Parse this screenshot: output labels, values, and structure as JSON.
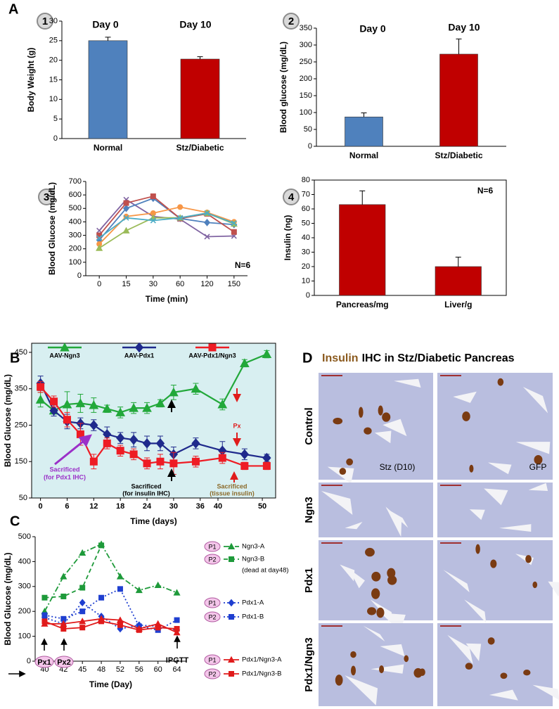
{
  "chart_data": [
    {
      "type": "bar",
      "figure_label": "A",
      "panel": "1",
      "annotations": [
        "Day 0",
        "Day 10"
      ],
      "ylabel": "Body Weight (g)",
      "categories": [
        "Normal",
        "Stz/Diabetic"
      ],
      "values": [
        25,
        20.3
      ],
      "errors": [
        0.9,
        0.6
      ],
      "colors": [
        "#4f81bd",
        "#c00000"
      ],
      "ylim": [
        0,
        30
      ],
      "yticks": [
        0,
        5,
        10,
        15,
        20,
        25,
        30
      ]
    },
    {
      "type": "bar",
      "panel": "2",
      "annotations": [
        "Day 0",
        "Day 10"
      ],
      "ylabel": "Blood glucose (mg/dL)",
      "categories": [
        "Normal",
        "Stz/Diabetic"
      ],
      "values": [
        87,
        273
      ],
      "errors": [
        12,
        45
      ],
      "colors": [
        "#4f81bd",
        "#c00000"
      ],
      "ylim": [
        0,
        350
      ],
      "yticks": [
        0,
        50,
        100,
        150,
        200,
        250,
        300,
        350
      ]
    },
    {
      "type": "line",
      "panel": "3",
      "annotations": [
        "N=6"
      ],
      "xlabel": "Time (min)",
      "ylabel": "Blood Glucose (mg/dL)",
      "categories": [
        "0",
        "15",
        "30",
        "60",
        "120",
        "150"
      ],
      "series": [
        {
          "color": "#8064a2",
          "marker": "x",
          "values": [
            335,
            565,
            440,
            420,
            290,
            295
          ]
        },
        {
          "color": "#4f81bd",
          "marker": "diamond",
          "values": [
            265,
            500,
            575,
            425,
            395,
            380
          ]
        },
        {
          "color": "#c0504d",
          "marker": "square",
          "values": [
            300,
            540,
            590,
            425,
            460,
            325
          ]
        },
        {
          "color": "#f79646",
          "marker": "circle",
          "values": [
            235,
            440,
            465,
            510,
            470,
            400
          ]
        },
        {
          "color": "#9bbb59",
          "marker": "triangle",
          "values": [
            205,
            335,
            430,
            430,
            465,
            385
          ]
        },
        {
          "color": "#4bacc6",
          "marker": "x",
          "values": [
            280,
            430,
            410,
            430,
            465,
            390
          ]
        }
      ],
      "ylim": [
        0,
        700
      ],
      "yticks": [
        0,
        100,
        200,
        300,
        400,
        500,
        600,
        700
      ]
    },
    {
      "type": "bar",
      "panel": "4",
      "annotations": [
        "N=6"
      ],
      "frame": true,
      "ylabel": "Insulin (ng)",
      "categories": [
        "Pancreas/mg",
        "Liver/g"
      ],
      "values": [
        63,
        20
      ],
      "errors": [
        9.5,
        6.5
      ],
      "colors": [
        "#c00000",
        "#c00000"
      ],
      "ylim": [
        0,
        80
      ],
      "yticks": [
        0,
        10,
        20,
        30,
        40,
        50,
        60,
        70,
        80
      ]
    },
    {
      "type": "line",
      "figure_label": "B",
      "xlabel": "Time (days)",
      "ylabel": "Blood Glucose (mg/dL)",
      "background": "#d8eff1",
      "annotations": [
        "Sacrificed",
        "(for Pdx1 IHC)",
        "Sacrificed",
        "(for insulin IHC)",
        "Sacrificed",
        "(tissue insulin)",
        "Px"
      ],
      "series": [
        {
          "name": "AAV-Ngn3",
          "color": "#22a83a",
          "marker": "triangle",
          "x": [
            0,
            3,
            6,
            9,
            12,
            15,
            18,
            21,
            24,
            27,
            30,
            35,
            41,
            46,
            51
          ],
          "values": [
            320,
            290,
            307,
            310,
            305,
            295,
            285,
            297,
            297,
            310,
            340,
            350,
            307,
            420,
            445
          ],
          "errors": [
            20,
            15,
            35,
            25,
            20,
            10,
            15,
            15,
            15,
            10,
            20,
            15,
            15,
            10,
            10
          ]
        },
        {
          "name": "AAV-Pdx1",
          "color": "#1f2a8c",
          "marker": "diamond",
          "x": [
            0,
            3,
            6,
            9,
            12,
            15,
            18,
            21,
            24,
            27,
            30,
            35,
            41,
            46,
            51
          ],
          "values": [
            365,
            290,
            260,
            255,
            250,
            225,
            215,
            210,
            200,
            200,
            170,
            200,
            180,
            170,
            160
          ],
          "errors": [
            20,
            15,
            20,
            15,
            15,
            20,
            15,
            20,
            20,
            20,
            20,
            15,
            25,
            15,
            10
          ]
        },
        {
          "name": "AAV-Pdx1/Ngn3",
          "color": "#ee1c24",
          "marker": "square",
          "x": [
            0,
            3,
            6,
            9,
            12,
            15,
            18,
            21,
            24,
            27,
            30,
            35,
            41,
            46,
            51
          ],
          "values": [
            355,
            315,
            265,
            225,
            150,
            200,
            180,
            170,
            145,
            150,
            145,
            150,
            160,
            138,
            138
          ],
          "errors": [
            15,
            15,
            20,
            30,
            20,
            15,
            15,
            15,
            15,
            20,
            30,
            15,
            15,
            10,
            10
          ]
        }
      ],
      "xlim": [
        -2,
        53
      ],
      "xticks": [
        0,
        6,
        12,
        18,
        24,
        30,
        36,
        40,
        50
      ],
      "ylim": [
        50,
        475
      ],
      "yticks": [
        50,
        150,
        250,
        350,
        450
      ]
    },
    {
      "type": "line",
      "figure_label": "C",
      "xlabel": "Time (Day)",
      "ylabel": "Blood Glucose (mg/dL)",
      "annotations": [
        "Px1",
        "Px2",
        "IPGTT"
      ],
      "categories": [
        "40",
        "42",
        "45",
        "48",
        "52",
        "56",
        "60",
        "64"
      ],
      "series": [
        {
          "name": "Ngn3-A",
          "badge": "P1",
          "color": "#1e9a3a",
          "marker": "triangle",
          "dash": "8 3 2 3",
          "values": [
            200,
            340,
            435,
            470,
            340,
            285,
            305,
            275
          ]
        },
        {
          "name": "Ngn3-B",
          "badge": "P2",
          "note": "(dead at day48)",
          "color": "#1e9a3a",
          "marker": "square",
          "dash": "6 4",
          "values": [
            255,
            260,
            295,
            465,
            null,
            null,
            null,
            null
          ]
        },
        {
          "name": "Pdx1-A",
          "badge": "P1",
          "color": "#1f3fd0",
          "marker": "diamond",
          "dash": "2 3",
          "values": [
            175,
            150,
            235,
            180,
            130,
            145,
            140,
            125
          ]
        },
        {
          "name": "Pdx1-B",
          "badge": "P2",
          "color": "#1f3fd0",
          "marker": "square",
          "dash": "2 3",
          "values": [
            185,
            170,
            200,
            255,
            290,
            140,
            125,
            165
          ]
        },
        {
          "name": "Pdx1/Ngn3-A",
          "badge": "P1",
          "color": "#e01b1b",
          "marker": "triangle",
          "values": [
            150,
            150,
            160,
            170,
            165,
            130,
            150,
            115
          ]
        },
        {
          "name": "Pdx1/Ngn3-B",
          "badge": "P2",
          "color": "#e01b1b",
          "marker": "square",
          "values": [
            160,
            130,
            135,
            160,
            145,
            125,
            135,
            130
          ]
        }
      ],
      "ylim": [
        0,
        500
      ],
      "yticks": [
        0,
        100,
        200,
        300,
        400,
        500
      ]
    }
  ],
  "panel_d": {
    "figure_label": "D",
    "title_highlight": "Insulin",
    "title_rest": "IHC in Stz/Diabetic Pancreas",
    "rows": [
      "Control",
      "Ngn3",
      "Pdx1",
      "Pdx1/Ngn3"
    ],
    "image_labels": [
      "Stz (D10)",
      "GFP"
    ]
  }
}
